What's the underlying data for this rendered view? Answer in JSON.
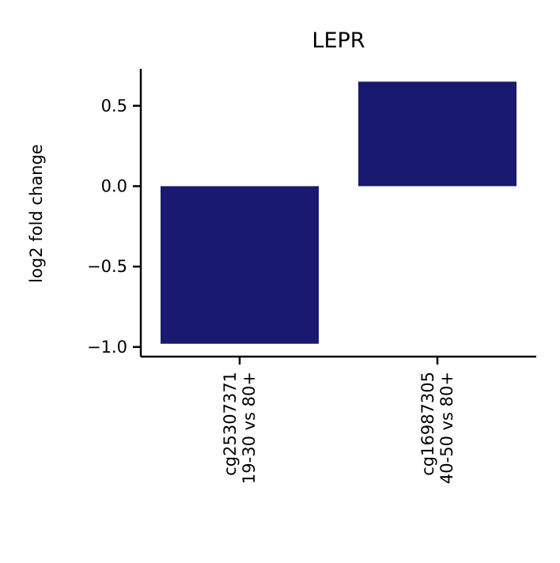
{
  "chart_data": {
    "type": "bar",
    "title": "LEPR",
    "xlabel": "",
    "ylabel": "log2 fold change",
    "categories": [
      [
        "cg25307371",
        "19-30 vs 80+"
      ],
      [
        "cg16987305",
        "40-50 vs 80+"
      ]
    ],
    "values": [
      -0.98,
      0.65
    ],
    "ylim": [
      -1.06,
      0.73
    ],
    "yticks": [
      -1.0,
      -0.5,
      0.0,
      0.5
    ],
    "ytick_labels": [
      "−1.0",
      "−0.5",
      "0.0",
      "0.5"
    ],
    "bar_color": "#191970",
    "grid": false,
    "legend": "none"
  }
}
